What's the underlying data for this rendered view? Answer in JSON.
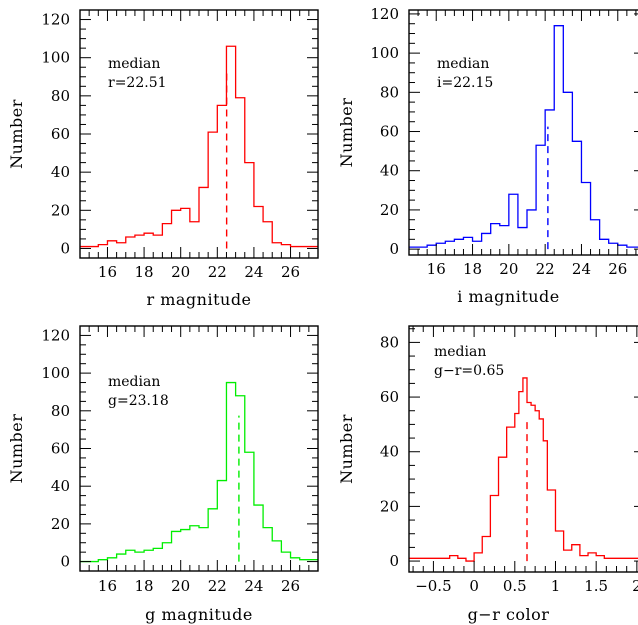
{
  "chart_data": [
    {
      "type": "histogram",
      "color": "#ff0000",
      "xlabel": "r magnitude",
      "ylabel": "Number",
      "xlim": [
        14.5,
        27.5
      ],
      "ylim": [
        -5,
        125
      ],
      "xticks": [
        16,
        18,
        20,
        22,
        24,
        26
      ],
      "yticks": [
        0,
        20,
        40,
        60,
        80,
        100,
        120
      ],
      "annotation": [
        "median",
        "r=22.51"
      ],
      "median": 22.51,
      "bin_edges": [
        14.5,
        15.5,
        16.0,
        16.5,
        17.0,
        17.5,
        18.0,
        18.5,
        19.0,
        19.5,
        20.0,
        20.5,
        21.0,
        21.5,
        22.0,
        22.5,
        23.0,
        23.5,
        24.0,
        24.5,
        25.0,
        25.5,
        26.0,
        26.5,
        27.5
      ],
      "values": [
        1,
        2,
        4,
        3,
        6,
        7,
        8,
        7,
        13,
        20,
        21,
        14,
        32,
        61,
        75,
        106,
        79,
        45,
        22,
        14,
        3,
        2,
        1,
        1
      ]
    },
    {
      "type": "histogram",
      "color": "#0000ff",
      "xlabel": "i magnitude",
      "ylabel": "Number",
      "xlim": [
        14.5,
        27.5
      ],
      "ylim": [
        -3,
        122
      ],
      "xticks": [
        16,
        18,
        20,
        22,
        24,
        26
      ],
      "yticks": [
        0,
        20,
        40,
        60,
        80,
        100,
        120
      ],
      "annotation": [
        "median",
        "i=22.15"
      ],
      "median": 22.15,
      "bin_edges": [
        14.5,
        15.5,
        16.0,
        16.5,
        17.0,
        17.5,
        18.0,
        18.5,
        19.0,
        19.5,
        20.0,
        20.5,
        21.0,
        21.5,
        22.0,
        22.5,
        23.0,
        23.5,
        24.0,
        24.5,
        25.0,
        25.5,
        26.0,
        26.5,
        27.5
      ],
      "values": [
        1,
        2,
        3,
        4,
        5,
        6,
        4,
        8,
        13,
        12,
        28,
        11,
        20,
        53,
        71,
        114,
        80,
        55,
        34,
        15,
        5,
        3,
        2,
        1
      ]
    },
    {
      "type": "histogram",
      "color": "#00ee00",
      "xlabel": "g magnitude",
      "ylabel": "Number",
      "xlim": [
        14.5,
        27.5
      ],
      "ylim": [
        -5,
        125
      ],
      "xticks": [
        16,
        18,
        20,
        22,
        24,
        26
      ],
      "yticks": [
        0,
        20,
        40,
        60,
        80,
        100,
        120
      ],
      "annotation": [
        "median",
        "g=23.18"
      ],
      "median": 23.18,
      "bin_edges": [
        14.5,
        15.5,
        16.0,
        16.5,
        17.0,
        17.5,
        18.0,
        18.5,
        19.0,
        19.5,
        20.0,
        20.5,
        21.0,
        21.5,
        22.0,
        22.5,
        23.0,
        23.5,
        24.0,
        24.5,
        25.0,
        25.5,
        26.0,
        26.5,
        27.5
      ],
      "values": [
        0,
        1,
        2,
        4,
        6,
        5,
        6,
        7,
        10,
        16,
        17,
        19,
        18,
        28,
        43,
        95,
        88,
        58,
        30,
        18,
        11,
        5,
        2,
        1
      ]
    },
    {
      "type": "histogram",
      "color": "#ff0000",
      "xlabel": "g−r color",
      "ylabel": "Number",
      "xlim": [
        -0.8,
        2.1
      ],
      "ylim": [
        -4,
        86
      ],
      "xticks": [
        -0.5,
        0,
        0.5,
        1,
        1.5,
        2
      ],
      "xticklabels": [
        "−0.5",
        "0",
        "0.5",
        "1",
        "1.5",
        "2"
      ],
      "yticks": [
        0,
        20,
        40,
        60,
        80
      ],
      "annotation": [
        "median",
        "g−r=0.65"
      ],
      "median": 0.65,
      "bin_edges": [
        -0.8,
        -0.3,
        -0.2,
        -0.1,
        0.0,
        0.1,
        0.2,
        0.3,
        0.4,
        0.5,
        0.55,
        0.6,
        0.65,
        0.7,
        0.75,
        0.8,
        0.85,
        0.9,
        1.0,
        1.1,
        1.2,
        1.3,
        1.4,
        1.5,
        1.6,
        1.7,
        2.1
      ],
      "values": [
        1,
        2,
        1,
        0,
        3,
        9,
        24,
        38,
        49,
        54,
        62,
        67,
        58,
        57,
        55,
        52,
        44,
        26,
        11,
        4,
        6,
        2,
        3,
        2,
        1,
        1
      ]
    }
  ]
}
